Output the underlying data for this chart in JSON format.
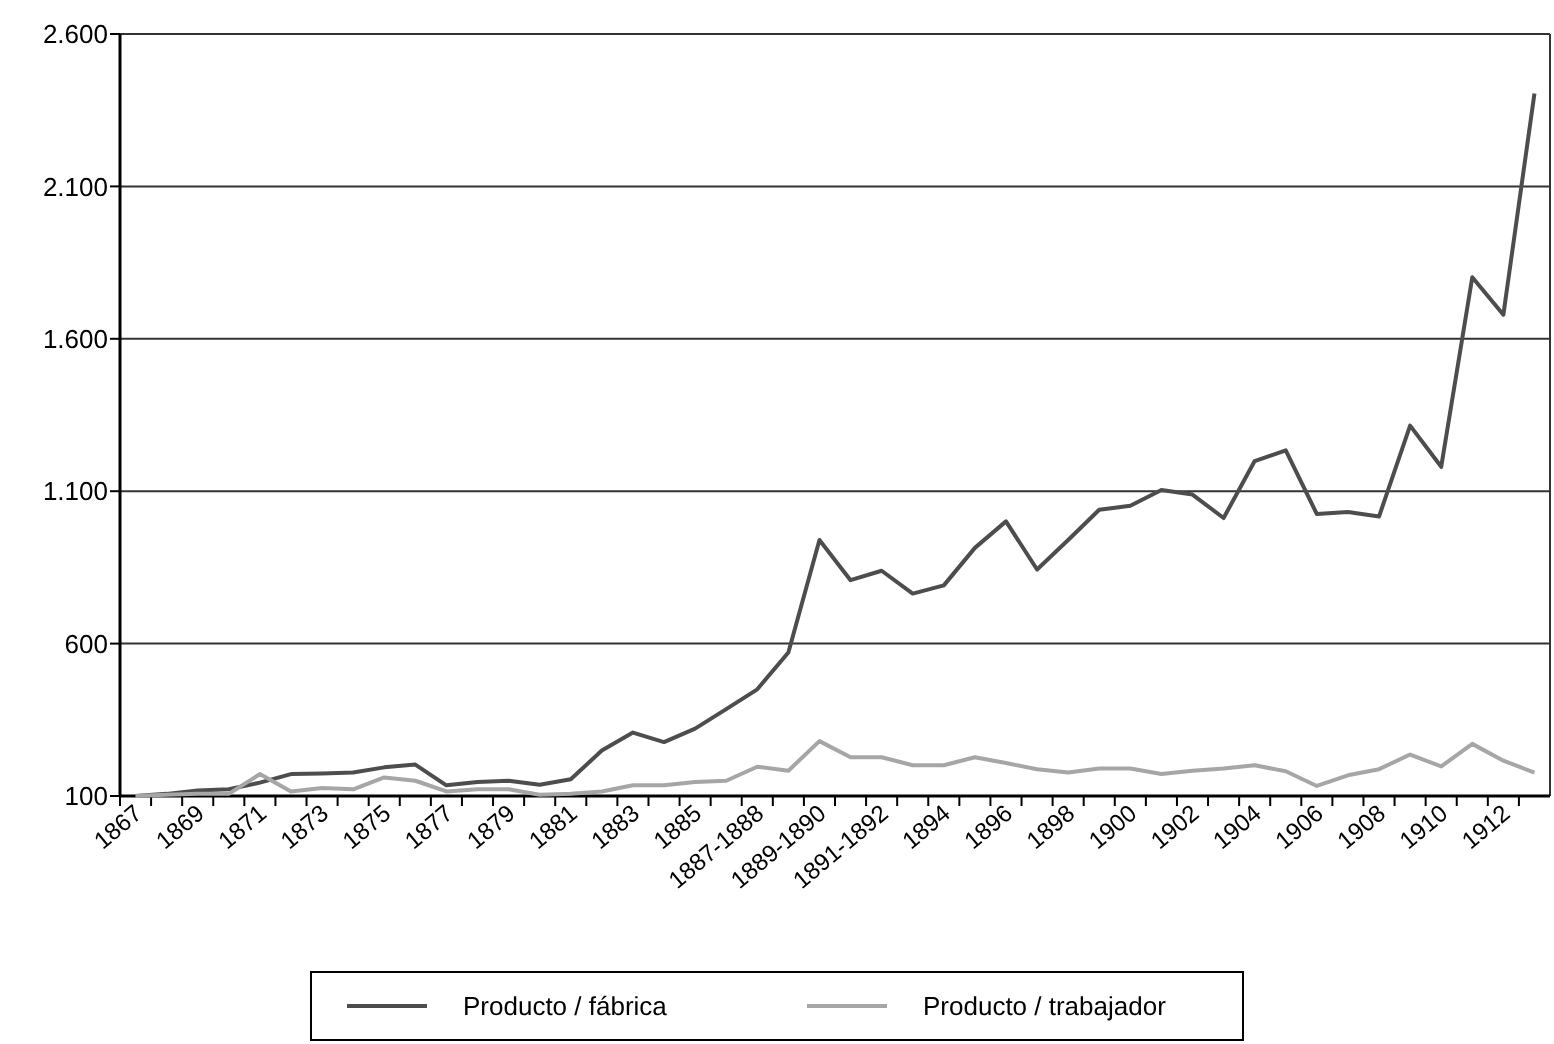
{
  "chart_data": {
    "type": "line",
    "categories": [
      "1867",
      null,
      "1869",
      null,
      "1871",
      null,
      "1873",
      null,
      "1875",
      null,
      "1877",
      null,
      "1879",
      null,
      "1881",
      null,
      "1883",
      null,
      "1885",
      null,
      "1887-1888",
      null,
      "1889-1890",
      null,
      "1891-1892",
      null,
      "1894",
      null,
      "1896",
      null,
      "1898",
      null,
      "1900",
      null,
      "1902",
      null,
      "1904",
      null,
      "1906",
      null,
      "1908",
      null,
      "1910",
      null,
      "1912",
      null
    ],
    "series": [
      {
        "name": "Producto / fábrica",
        "color": "#4d4d4d",
        "values": [
          100,
          107,
          118,
          122,
          144,
          172,
          174,
          177,
          194,
          203,
          135,
          146,
          150,
          137,
          155,
          249,
          308,
          277,
          321,
          385,
          450,
          571,
          940,
          808,
          839,
          764,
          791,
          914,
          1001,
          843,
          940,
          1039,
          1052,
          1104,
          1089,
          1012,
          1199,
          1234,
          1025,
          1032,
          1017,
          1315,
          1180,
          1802,
          1679,
          2405
        ]
      },
      {
        "name": "Producto / trabajador",
        "color": "#a6a6a6",
        "values": [
          100,
          104,
          107,
          107,
          172,
          115,
          126,
          122,
          161,
          150,
          115,
          122,
          122,
          104,
          107,
          115,
          135,
          135,
          146,
          150,
          196,
          183,
          280,
          227,
          227,
          201,
          201,
          227,
          208,
          188,
          177,
          190,
          190,
          172,
          183,
          190,
          201,
          181,
          133,
          168,
          188,
          236,
          197,
          271,
          216,
          177
        ]
      }
    ],
    "ylim": [
      100,
      2600
    ],
    "yticks": [
      100,
      600,
      {
        "value": 1100,
        "label": "1.100"
      },
      {
        "value": 1600,
        "label": "1.600"
      },
      {
        "value": 2100,
        "label": "2.100"
      },
      {
        "value": 2600,
        "label": "2.600"
      }
    ],
    "grid": "y",
    "legend": "bottom",
    "marker": "none",
    "line_style": "solid"
  }
}
